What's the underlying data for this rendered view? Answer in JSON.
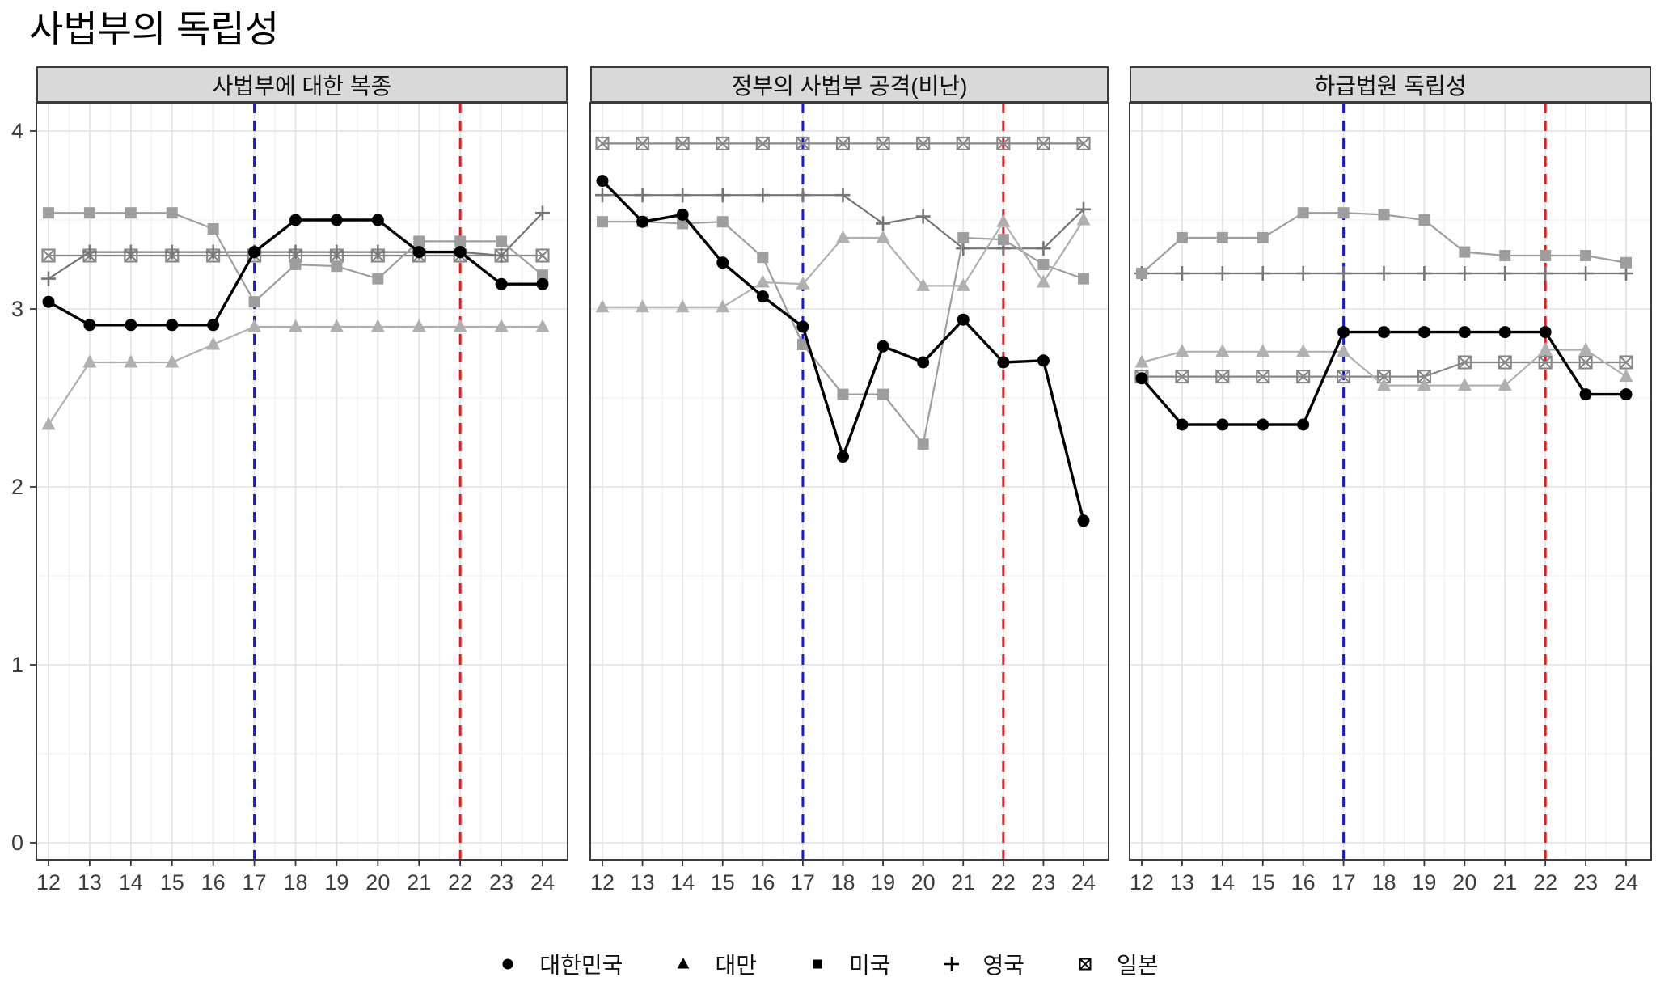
{
  "title": "사법부의 독립성",
  "legend": {
    "items": [
      {
        "label": "대한민국",
        "marker": "circle"
      },
      {
        "label": "대만",
        "marker": "triangle"
      },
      {
        "label": "미국",
        "marker": "square"
      },
      {
        "label": "영국",
        "marker": "plus"
      },
      {
        "label": "일본",
        "marker": "crossed-square"
      }
    ]
  },
  "colors": {
    "대한민국": "#000000",
    "대만": "#b0b0b0",
    "미국": "#9e9e9e",
    "영국": "#757575",
    "일본": "#878787",
    "blue_vline": "#1616f0",
    "red_vline": "#f01414",
    "grid_major": "#e4e4e4",
    "grid_minor": "#f1f1f1",
    "panel_border": "#3c3c3c",
    "strip_bg": "#d9d9d9",
    "axis_text": "#3d3d3d"
  },
  "chart_data": {
    "type": "line",
    "x": [
      12,
      13,
      14,
      15,
      16,
      17,
      18,
      19,
      20,
      21,
      22,
      23,
      24
    ],
    "ylim": [
      0,
      4
    ],
    "yticks": [
      0,
      1,
      2,
      3,
      4
    ],
    "vline_blue_x": 17,
    "vline_red_x": 22,
    "grid": "on",
    "legend_position": "bottom",
    "panels": [
      {
        "title": "사법부에 대한 복종",
        "series": [
          {
            "name": "대한민국",
            "marker": "circle",
            "values": [
              3.04,
              2.91,
              2.91,
              2.91,
              2.91,
              3.32,
              3.5,
              3.5,
              3.5,
              3.32,
              3.32,
              3.14,
              3.14
            ]
          },
          {
            "name": "대만",
            "marker": "triangle",
            "values": [
              2.35,
              2.7,
              2.7,
              2.7,
              2.8,
              2.9,
              2.9,
              2.9,
              2.9,
              2.9,
              2.9,
              2.9,
              2.9
            ]
          },
          {
            "name": "미국",
            "marker": "square",
            "values": [
              3.54,
              3.54,
              3.54,
              3.54,
              3.45,
              3.04,
              3.25,
              3.24,
              3.17,
              3.38,
              3.38,
              3.38,
              3.19
            ]
          },
          {
            "name": "영국",
            "marker": "plus",
            "values": [
              3.17,
              3.32,
              3.32,
              3.32,
              3.32,
              3.32,
              3.32,
              3.32,
              3.32,
              3.32,
              3.32,
              3.3,
              3.54
            ]
          },
          {
            "name": "일본",
            "marker": "crossed-square",
            "values": [
              3.3,
              3.3,
              3.3,
              3.3,
              3.3,
              3.3,
              3.3,
              3.3,
              3.3,
              3.3,
              3.3,
              3.3,
              3.3
            ]
          }
        ]
      },
      {
        "title": "정부의 사법부 공격(비난)",
        "series": [
          {
            "name": "대한민국",
            "marker": "circle",
            "values": [
              3.72,
              3.49,
              3.53,
              3.26,
              3.07,
              2.9,
              2.17,
              2.79,
              2.7,
              2.94,
              2.7,
              2.71,
              1.81
            ]
          },
          {
            "name": "대만",
            "marker": "triangle",
            "values": [
              3.01,
              3.01,
              3.01,
              3.01,
              3.15,
              3.14,
              3.4,
              3.4,
              3.13,
              3.13,
              3.49,
              3.15,
              3.5
            ]
          },
          {
            "name": "미국",
            "marker": "square",
            "values": [
              3.49,
              3.49,
              3.48,
              3.49,
              3.29,
              2.8,
              2.52,
              2.52,
              2.24,
              3.4,
              3.39,
              3.25,
              3.17
            ]
          },
          {
            "name": "영국",
            "marker": "plus",
            "values": [
              3.64,
              3.64,
              3.64,
              3.64,
              3.64,
              3.64,
              3.64,
              3.48,
              3.52,
              3.34,
              3.34,
              3.34,
              3.56
            ]
          },
          {
            "name": "일본",
            "marker": "crossed-square",
            "values": [
              3.93,
              3.93,
              3.93,
              3.93,
              3.93,
              3.93,
              3.93,
              3.93,
              3.93,
              3.93,
              3.93,
              3.93,
              3.93
            ]
          }
        ]
      },
      {
        "title": "하급법원 독립성",
        "series": [
          {
            "name": "대한민국",
            "marker": "circle",
            "values": [
              2.61,
              2.35,
              2.35,
              2.35,
              2.35,
              2.87,
              2.87,
              2.87,
              2.87,
              2.87,
              2.87,
              2.52,
              2.52
            ]
          },
          {
            "name": "대만",
            "marker": "triangle",
            "values": [
              2.7,
              2.76,
              2.76,
              2.76,
              2.76,
              2.76,
              2.57,
              2.57,
              2.57,
              2.57,
              2.77,
              2.77,
              2.62
            ]
          },
          {
            "name": "미국",
            "marker": "square",
            "values": [
              3.2,
              3.4,
              3.4,
              3.4,
              3.54,
              3.54,
              3.53,
              3.5,
              3.32,
              3.3,
              3.3,
              3.3,
              3.26
            ]
          },
          {
            "name": "영국",
            "marker": "plus",
            "values": [
              3.2,
              3.2,
              3.2,
              3.2,
              3.2,
              3.2,
              3.2,
              3.2,
              3.2,
              3.2,
              3.2,
              3.2,
              3.2
            ]
          },
          {
            "name": "일본",
            "marker": "crossed-square",
            "values": [
              2.62,
              2.62,
              2.62,
              2.62,
              2.62,
              2.62,
              2.62,
              2.62,
              2.7,
              2.7,
              2.7,
              2.7,
              2.7
            ]
          }
        ]
      }
    ]
  }
}
